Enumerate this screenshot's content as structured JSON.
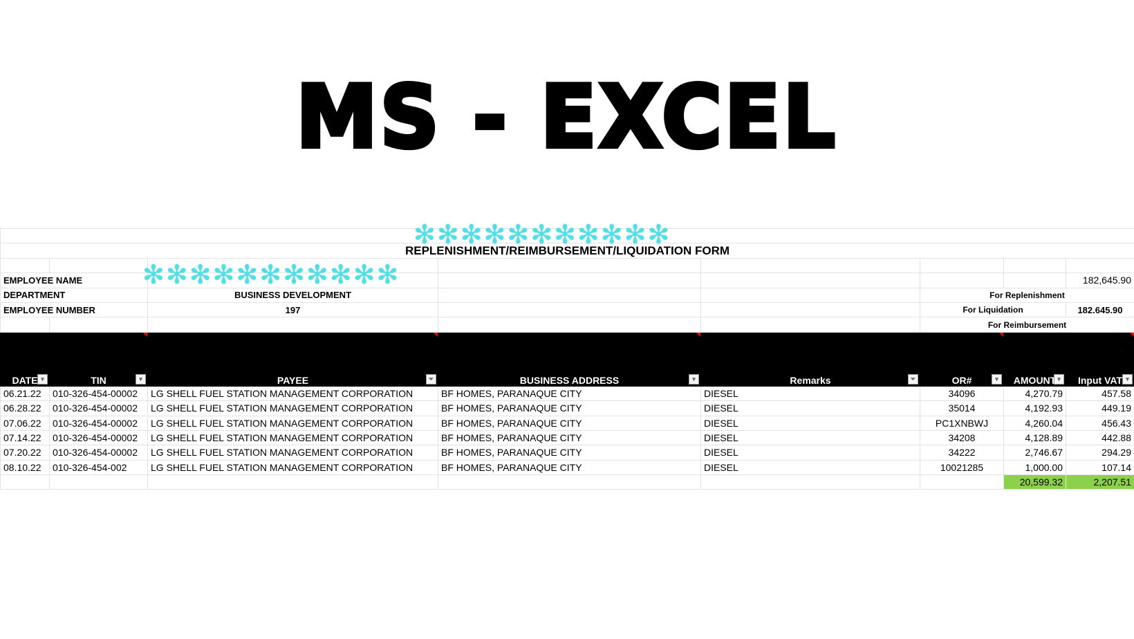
{
  "title": "MS - EXCEL",
  "form_title": "REPLENISHMENT/REIMBURSEMENT/LIQUIDATION FORM",
  "employee": {
    "name_label": "EMPLOYEE NAME",
    "dept_label": "DEPARTMENT",
    "dept_value": "BUSINESS DEVELOPMENT",
    "number_label": "EMPLOYEE NUMBER",
    "number_value": "197"
  },
  "summary": {
    "top_value": "182,645.90",
    "replenishment": "For Replenishment",
    "liquidation": "For Liquidation",
    "liquidation_value": "182.645.90",
    "reimbursement": "For Reimbursement"
  },
  "columns": [
    "DATE",
    "TIN",
    "PAYEE",
    "BUSINESS ADDRESS",
    "Remarks",
    "OR#",
    "AMOUNT",
    "Input VAT"
  ],
  "rows": [
    [
      "06.21.22",
      "010-326-454-00002",
      "LG SHELL FUEL STATION MANAGEMENT CORPORATION",
      "BF HOMES, PARANAQUE CITY",
      "DIESEL",
      "34096",
      "4,270.79",
      "457.58"
    ],
    [
      "06.28.22",
      "010-326-454-00002",
      "LG SHELL FUEL STATION MANAGEMENT CORPORATION",
      "BF HOMES, PARANAQUE CITY",
      "DIESEL",
      "35014",
      "4,192.93",
      "449.19"
    ],
    [
      "07.06.22",
      "010-326-454-00002",
      "LG SHELL FUEL STATION MANAGEMENT CORPORATION",
      "BF HOMES, PARANAQUE CITY",
      "DIESEL",
      "PC1XNBWJ",
      "4,260.04",
      "456.43"
    ],
    [
      "07.14.22",
      "010-326-454-00002",
      "LG SHELL FUEL STATION MANAGEMENT CORPORATION",
      "BF HOMES, PARANAQUE CITY",
      "DIESEL",
      "34208",
      "4,128.89",
      "442.88"
    ],
    [
      "07.20.22",
      "010-326-454-00002",
      "LG SHELL FUEL STATION MANAGEMENT CORPORATION",
      "BF HOMES, PARANAQUE CITY",
      "DIESEL",
      "34222",
      "2,746.67",
      "294.29"
    ],
    [
      "08.10.22",
      "010-326-454-002",
      "LG SHELL FUEL STATION MANAGEMENT CORPORATION",
      "BF HOMES, PARANAQUE CITY",
      "DIESEL",
      "10021285",
      "1,000.00",
      "107.14"
    ]
  ],
  "totals": {
    "amount": "20,599.32",
    "vat": "2,207.51"
  },
  "colors": {
    "total_fill": "#8bd14b",
    "redaction": "#55dde5"
  }
}
